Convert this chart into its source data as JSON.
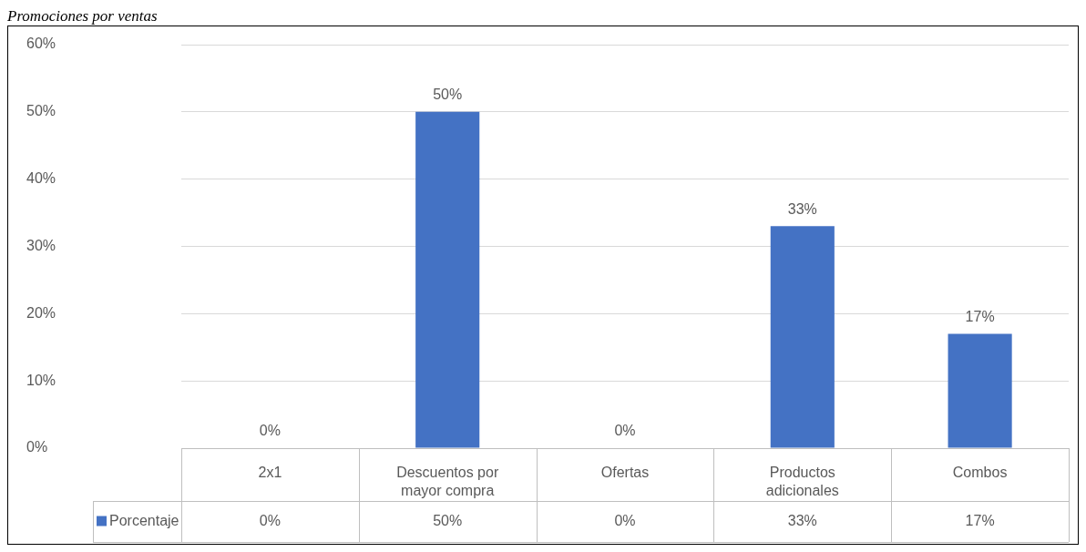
{
  "chart_data": {
    "type": "bar",
    "title": "Promociones por ventas",
    "categories": [
      "2x1",
      "Descuentos por mayor compra",
      "Ofertas",
      "Productos adicionales",
      "Combos"
    ],
    "series": [
      {
        "name": "Porcentaje",
        "color": "#4472c4",
        "values": [
          0,
          50,
          0,
          33,
          17
        ],
        "value_labels": [
          "0%",
          "50%",
          "0%",
          "33%",
          "17%"
        ]
      }
    ],
    "ylim": [
      0,
      60
    ],
    "yticks": [
      {
        "value": 0,
        "label": "0%"
      },
      {
        "value": 10,
        "label": "10%"
      },
      {
        "value": 20,
        "label": "20%"
      },
      {
        "value": 30,
        "label": "30%"
      },
      {
        "value": 40,
        "label": "40%"
      },
      {
        "value": 50,
        "label": "50%"
      },
      {
        "value": 60,
        "label": "60%"
      }
    ],
    "grid": "y",
    "legend": "bottom"
  }
}
